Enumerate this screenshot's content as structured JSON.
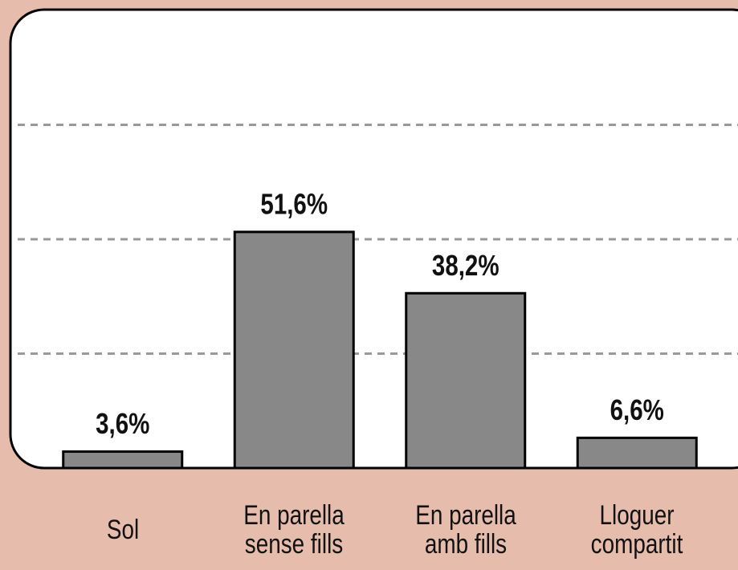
{
  "chart_data": {
    "type": "bar",
    "categories": [
      "Sol",
      "En parella sense fills",
      "En parella amb fills",
      "Lloguer compartit"
    ],
    "values": [
      3.6,
      51.6,
      38.2,
      6.6
    ],
    "value_labels": [
      "3,6%",
      "51,6%",
      "38,2%",
      "6,6%"
    ],
    "color": "#888888",
    "ylim": [
      0,
      100
    ],
    "yticks": [
      25,
      50,
      75
    ],
    "grid": true
  }
}
